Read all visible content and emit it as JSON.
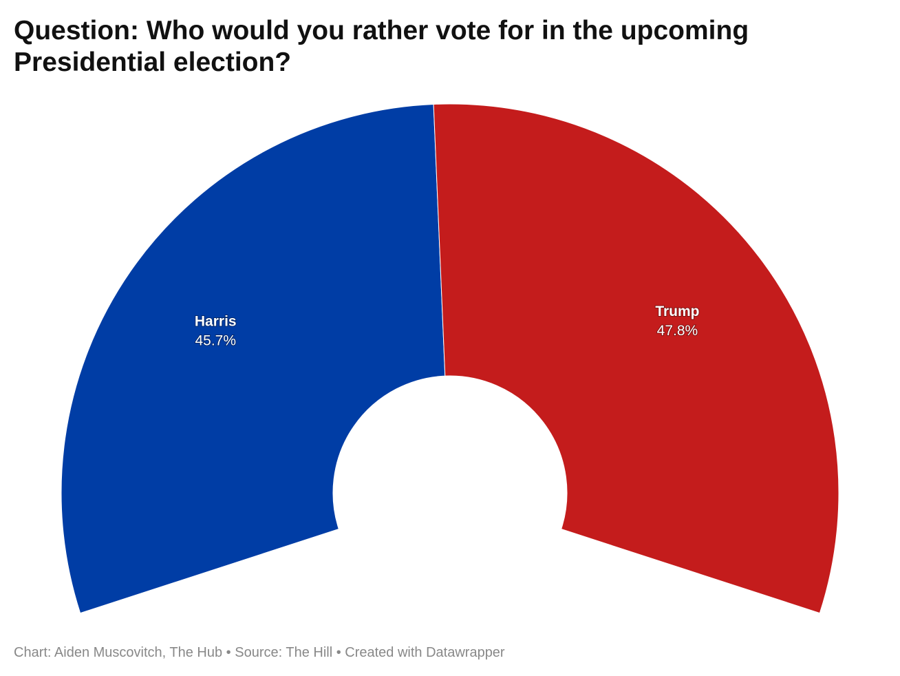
{
  "chart_data": {
    "type": "pie",
    "variant": "semicircle-donut",
    "title": "Question: Who would you rather vote for in the upcoming Presidential election?",
    "slices": [
      {
        "name": "Harris",
        "value": 45.7,
        "label": "45.7%",
        "color": "#003da5"
      },
      {
        "name": "Trump",
        "value": 47.8,
        "label": "47.8%",
        "color": "#c41c1c"
      }
    ],
    "total_arc_degrees": 216,
    "footer": "Chart: Aiden Muscovitch, The Hub • Source: The Hill • Created with Datawrapper"
  }
}
